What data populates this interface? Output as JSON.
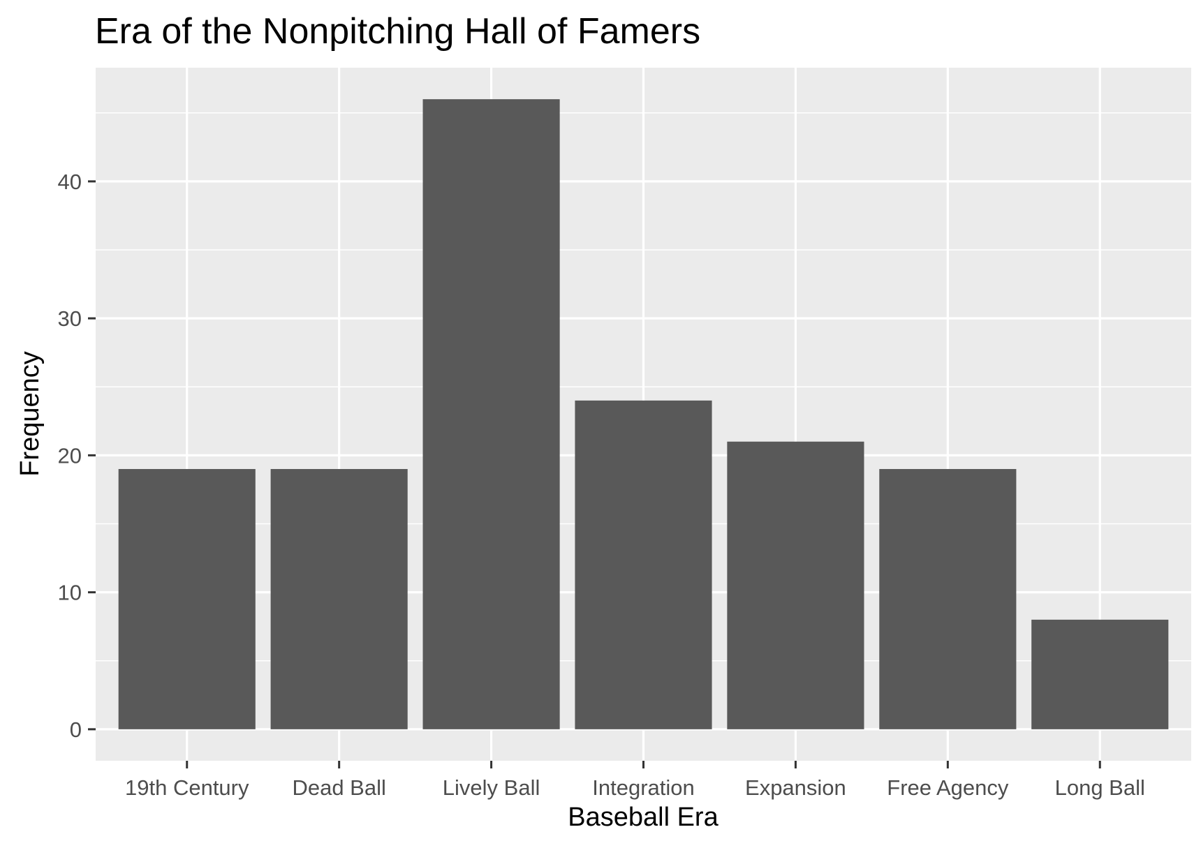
{
  "chart_data": {
    "type": "bar",
    "title": "Era of the Nonpitching Hall of Famers",
    "xlabel": "Baseball Era",
    "ylabel": "Frequency",
    "categories": [
      "19th Century",
      "Dead Ball",
      "Lively Ball",
      "Integration",
      "Expansion",
      "Free Agency",
      "Long Ball"
    ],
    "values": [
      19,
      19,
      46,
      24,
      21,
      19,
      8
    ],
    "ylim": [
      -2.3,
      48.3
    ],
    "yticks": [
      0,
      10,
      20,
      30,
      40
    ],
    "ytick_labels": [
      "0",
      "10",
      "20",
      "30",
      "40"
    ],
    "grid": true,
    "colors": {
      "bar": "#595959",
      "panel_background": "#ebebeb",
      "grid": "#ffffff",
      "tick_text": "#4d4d4d",
      "tick_mark": "#333333"
    }
  }
}
